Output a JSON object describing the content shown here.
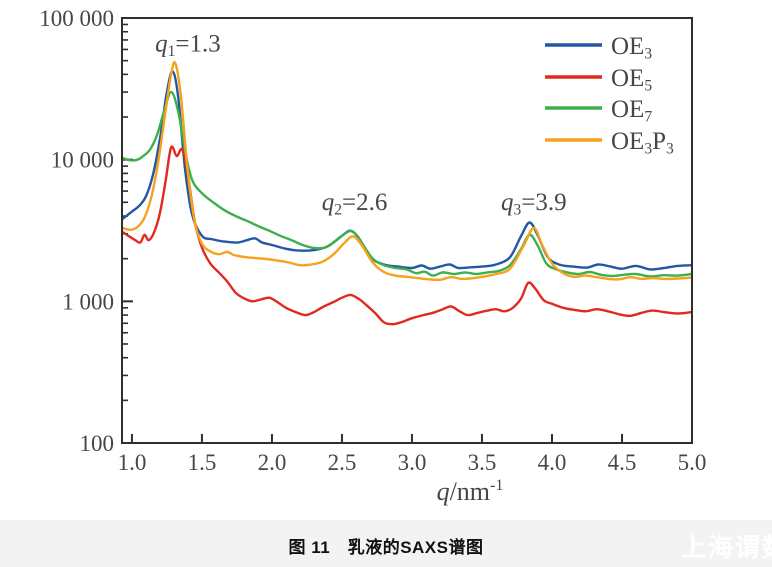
{
  "caption": {
    "text": "图 11　乳液的SAXS谱图"
  },
  "watermark": {
    "text": "上海谓数"
  },
  "chart_data": {
    "type": "line",
    "title": "",
    "x_axis": {
      "label_segments": [
        {
          "t": "q",
          "i": 1
        },
        {
          "t": "/nm"
        },
        {
          "t": "-1",
          "p": 1
        }
      ],
      "ticks": [
        {
          "v": 1.0,
          "l": "1.0"
        },
        {
          "v": 1.5,
          "l": "1.5"
        },
        {
          "v": 2.0,
          "l": "2.0"
        },
        {
          "v": 2.5,
          "l": "2.5"
        },
        {
          "v": 3.0,
          "l": "3.0"
        },
        {
          "v": 3.5,
          "l": "3.5"
        },
        {
          "v": 4.0,
          "l": "4.0"
        },
        {
          "v": 4.5,
          "l": "4.5"
        },
        {
          "v": 5.0,
          "l": "5.0"
        }
      ],
      "xlim": [
        0.929,
        5.0
      ],
      "scale": "linear"
    },
    "y_axis": {
      "label": "",
      "ticks": [
        {
          "v": 100,
          "l": "100"
        },
        {
          "v": 1000,
          "l": "1 000"
        },
        {
          "v": 10000,
          "l": "10 000"
        },
        {
          "v": 100000,
          "l": "100 000"
        }
      ],
      "ylim": [
        100,
        100000
      ],
      "scale": "log"
    },
    "grid": false,
    "legend_position": "top-right-inside",
    "annotations": [
      {
        "segments": [
          {
            "t": "q",
            "i": 1
          },
          {
            "t": "1",
            "s": 1
          },
          {
            "t": "=1.3"
          }
        ],
        "q": 1.4,
        "i": 66000
      },
      {
        "segments": [
          {
            "t": "q",
            "i": 1
          },
          {
            "t": "2",
            "s": 1
          },
          {
            "t": "=2.6"
          }
        ],
        "q": 2.59,
        "i": 5020
      },
      {
        "segments": [
          {
            "t": "q",
            "i": 1
          },
          {
            "t": "3",
            "s": 1
          },
          {
            "t": "=3.9"
          }
        ],
        "q": 3.87,
        "i": 5020
      }
    ],
    "colors": {
      "axis": "#2f2f2f",
      "tick_text": "#474747",
      "OE3": "#2356a4",
      "OE5": "#e02a20",
      "OE7": "#3daf4b",
      "OE3P3": "#f5a21c"
    },
    "series": [
      {
        "name": "OE3",
        "label_segments": [
          {
            "t": "OE"
          },
          {
            "t": "3",
            "s": 1
          }
        ],
        "color": "#2356a4",
        "points": [
          [
            0.93,
            3800
          ],
          [
            1.0,
            4300
          ],
          [
            1.05,
            4700
          ],
          [
            1.1,
            5500
          ],
          [
            1.15,
            7800
          ],
          [
            1.2,
            14000
          ],
          [
            1.25,
            30000
          ],
          [
            1.29,
            42000
          ],
          [
            1.33,
            28000
          ],
          [
            1.38,
            8500
          ],
          [
            1.43,
            4100
          ],
          [
            1.5,
            2900
          ],
          [
            1.57,
            2750
          ],
          [
            1.65,
            2650
          ],
          [
            1.75,
            2600
          ],
          [
            1.82,
            2700
          ],
          [
            1.88,
            2780
          ],
          [
            1.93,
            2600
          ],
          [
            2.0,
            2500
          ],
          [
            2.1,
            2350
          ],
          [
            2.2,
            2280
          ],
          [
            2.3,
            2300
          ],
          [
            2.4,
            2450
          ],
          [
            2.5,
            2900
          ],
          [
            2.56,
            3150
          ],
          [
            2.62,
            2800
          ],
          [
            2.7,
            2050
          ],
          [
            2.8,
            1820
          ],
          [
            2.9,
            1760
          ],
          [
            3.0,
            1720
          ],
          [
            3.07,
            1790
          ],
          [
            3.13,
            1700
          ],
          [
            3.2,
            1760
          ],
          [
            3.27,
            1820
          ],
          [
            3.33,
            1720
          ],
          [
            3.42,
            1740
          ],
          [
            3.5,
            1760
          ],
          [
            3.6,
            1820
          ],
          [
            3.7,
            2050
          ],
          [
            3.78,
            2900
          ],
          [
            3.84,
            3600
          ],
          [
            3.9,
            2900
          ],
          [
            3.97,
            2050
          ],
          [
            4.05,
            1820
          ],
          [
            4.15,
            1760
          ],
          [
            4.25,
            1730
          ],
          [
            4.33,
            1820
          ],
          [
            4.42,
            1760
          ],
          [
            4.5,
            1700
          ],
          [
            4.6,
            1780
          ],
          [
            4.7,
            1680
          ],
          [
            4.8,
            1720
          ],
          [
            4.9,
            1780
          ],
          [
            5.0,
            1800
          ]
        ]
      },
      {
        "name": "OE5",
        "label_segments": [
          {
            "t": "OE"
          },
          {
            "t": "5",
            "s": 1
          }
        ],
        "color": "#e02a20",
        "points": [
          [
            0.93,
            3100
          ],
          [
            0.98,
            2880
          ],
          [
            1.02,
            2720
          ],
          [
            1.06,
            2600
          ],
          [
            1.09,
            2950
          ],
          [
            1.12,
            2700
          ],
          [
            1.16,
            3100
          ],
          [
            1.2,
            4200
          ],
          [
            1.24,
            7000
          ],
          [
            1.28,
            12200
          ],
          [
            1.32,
            10600
          ],
          [
            1.36,
            11800
          ],
          [
            1.4,
            7800
          ],
          [
            1.45,
            3600
          ],
          [
            1.5,
            2400
          ],
          [
            1.56,
            1850
          ],
          [
            1.62,
            1600
          ],
          [
            1.68,
            1380
          ],
          [
            1.74,
            1150
          ],
          [
            1.8,
            1050
          ],
          [
            1.86,
            1000
          ],
          [
            1.92,
            1030
          ],
          [
            1.98,
            1060
          ],
          [
            2.03,
            1000
          ],
          [
            2.1,
            900
          ],
          [
            2.17,
            840
          ],
          [
            2.24,
            800
          ],
          [
            2.3,
            840
          ],
          [
            2.37,
            920
          ],
          [
            2.44,
            990
          ],
          [
            2.5,
            1060
          ],
          [
            2.56,
            1110
          ],
          [
            2.62,
            1040
          ],
          [
            2.68,
            930
          ],
          [
            2.74,
            820
          ],
          [
            2.8,
            710
          ],
          [
            2.86,
            690
          ],
          [
            2.92,
            710
          ],
          [
            3.0,
            760
          ],
          [
            3.08,
            800
          ],
          [
            3.15,
            830
          ],
          [
            3.22,
            880
          ],
          [
            3.28,
            920
          ],
          [
            3.34,
            850
          ],
          [
            3.4,
            800
          ],
          [
            3.47,
            830
          ],
          [
            3.54,
            860
          ],
          [
            3.6,
            880
          ],
          [
            3.66,
            850
          ],
          [
            3.72,
            900
          ],
          [
            3.78,
            1050
          ],
          [
            3.83,
            1350
          ],
          [
            3.88,
            1230
          ],
          [
            3.94,
            1020
          ],
          [
            4.0,
            960
          ],
          [
            4.08,
            900
          ],
          [
            4.16,
            870
          ],
          [
            4.24,
            850
          ],
          [
            4.32,
            880
          ],
          [
            4.4,
            850
          ],
          [
            4.48,
            810
          ],
          [
            4.56,
            790
          ],
          [
            4.64,
            830
          ],
          [
            4.72,
            860
          ],
          [
            4.8,
            840
          ],
          [
            4.9,
            820
          ],
          [
            5.0,
            840
          ]
        ]
      },
      {
        "name": "OE7",
        "label_segments": [
          {
            "t": "OE"
          },
          {
            "t": "7",
            "s": 1
          }
        ],
        "color": "#3daf4b",
        "points": [
          [
            0.93,
            10300
          ],
          [
            0.99,
            9900
          ],
          [
            1.04,
            10000
          ],
          [
            1.08,
            10600
          ],
          [
            1.13,
            11800
          ],
          [
            1.18,
            15000
          ],
          [
            1.23,
            22000
          ],
          [
            1.28,
            30000
          ],
          [
            1.33,
            22000
          ],
          [
            1.38,
            11500
          ],
          [
            1.43,
            7200
          ],
          [
            1.5,
            5800
          ],
          [
            1.58,
            5000
          ],
          [
            1.66,
            4400
          ],
          [
            1.74,
            4000
          ],
          [
            1.82,
            3700
          ],
          [
            1.9,
            3400
          ],
          [
            1.98,
            3150
          ],
          [
            2.06,
            2900
          ],
          [
            2.14,
            2700
          ],
          [
            2.22,
            2500
          ],
          [
            2.3,
            2380
          ],
          [
            2.38,
            2400
          ],
          [
            2.46,
            2700
          ],
          [
            2.53,
            3050
          ],
          [
            2.58,
            3100
          ],
          [
            2.64,
            2600
          ],
          [
            2.72,
            2000
          ],
          [
            2.8,
            1800
          ],
          [
            2.88,
            1720
          ],
          [
            2.96,
            1680
          ],
          [
            3.03,
            1580
          ],
          [
            3.09,
            1620
          ],
          [
            3.15,
            1520
          ],
          [
            3.22,
            1600
          ],
          [
            3.3,
            1560
          ],
          [
            3.38,
            1600
          ],
          [
            3.46,
            1560
          ],
          [
            3.54,
            1600
          ],
          [
            3.62,
            1640
          ],
          [
            3.7,
            1800
          ],
          [
            3.78,
            2350
          ],
          [
            3.84,
            2950
          ],
          [
            3.9,
            2450
          ],
          [
            3.96,
            1850
          ],
          [
            4.03,
            1680
          ],
          [
            4.11,
            1600
          ],
          [
            4.19,
            1560
          ],
          [
            4.27,
            1610
          ],
          [
            4.35,
            1540
          ],
          [
            4.43,
            1510
          ],
          [
            4.51,
            1540
          ],
          [
            4.6,
            1560
          ],
          [
            4.7,
            1500
          ],
          [
            4.8,
            1530
          ],
          [
            4.9,
            1520
          ],
          [
            5.0,
            1560
          ]
        ]
      },
      {
        "name": "OE3P3",
        "label_segments": [
          {
            "t": "OE"
          },
          {
            "t": "3",
            "s": 1
          },
          {
            "t": "P"
          },
          {
            "t": "3",
            "s": 1
          }
        ],
        "color": "#f5a21c",
        "points": [
          [
            0.93,
            3300
          ],
          [
            0.99,
            3200
          ],
          [
            1.04,
            3350
          ],
          [
            1.09,
            3900
          ],
          [
            1.14,
            5500
          ],
          [
            1.19,
            10000
          ],
          [
            1.24,
            22000
          ],
          [
            1.28,
            40000
          ],
          [
            1.31,
            48000
          ],
          [
            1.35,
            28000
          ],
          [
            1.4,
            8000
          ],
          [
            1.45,
            3600
          ],
          [
            1.5,
            2550
          ],
          [
            1.56,
            2250
          ],
          [
            1.62,
            2150
          ],
          [
            1.68,
            2230
          ],
          [
            1.73,
            2120
          ],
          [
            1.8,
            2060
          ],
          [
            1.88,
            2020
          ],
          [
            1.96,
            1990
          ],
          [
            2.04,
            1940
          ],
          [
            2.12,
            1880
          ],
          [
            2.2,
            1800
          ],
          [
            2.28,
            1820
          ],
          [
            2.36,
            1900
          ],
          [
            2.44,
            2150
          ],
          [
            2.52,
            2600
          ],
          [
            2.58,
            2880
          ],
          [
            2.64,
            2500
          ],
          [
            2.72,
            1880
          ],
          [
            2.8,
            1610
          ],
          [
            2.88,
            1520
          ],
          [
            2.96,
            1490
          ],
          [
            3.04,
            1460
          ],
          [
            3.12,
            1430
          ],
          [
            3.2,
            1420
          ],
          [
            3.28,
            1480
          ],
          [
            3.36,
            1440
          ],
          [
            3.44,
            1460
          ],
          [
            3.52,
            1500
          ],
          [
            3.6,
            1560
          ],
          [
            3.7,
            1700
          ],
          [
            3.8,
            2500
          ],
          [
            3.87,
            3300
          ],
          [
            3.93,
            2500
          ],
          [
            4.0,
            1850
          ],
          [
            4.08,
            1580
          ],
          [
            4.16,
            1490
          ],
          [
            4.24,
            1520
          ],
          [
            4.32,
            1480
          ],
          [
            4.4,
            1440
          ],
          [
            4.48,
            1430
          ],
          [
            4.56,
            1480
          ],
          [
            4.64,
            1440
          ],
          [
            4.72,
            1460
          ],
          [
            4.8,
            1440
          ],
          [
            4.9,
            1450
          ],
          [
            5.0,
            1470
          ]
        ]
      }
    ]
  }
}
